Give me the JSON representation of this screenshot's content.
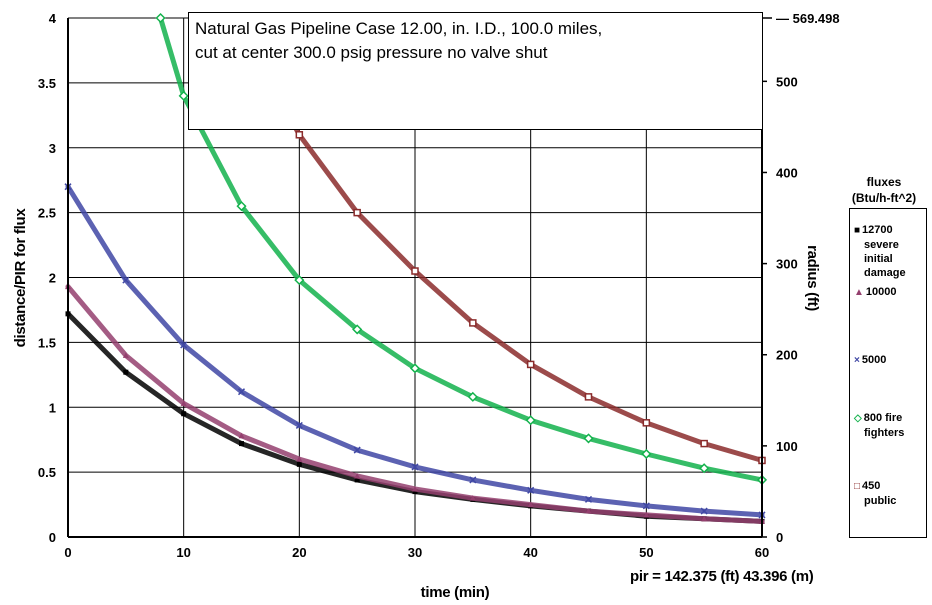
{
  "title_lines": [
    "Natural Gas Pipeline Case 12.00, in. I.D., 100.0 miles,",
    "cut at center 300.0 psig pressure no valve shut"
  ],
  "footer_note": "pir = 142.375 (ft) 43.396 (m)",
  "legend": {
    "heading_lines": [
      "fluxes",
      "(Btu/h-ft^2)"
    ],
    "items": [
      {
        "lines": [
          "12700",
          "severe",
          "initial",
          "damage"
        ],
        "marker": "square",
        "color": "#000000"
      },
      {
        "lines": [
          "10000"
        ],
        "marker": "triangle",
        "color": "#943f6e"
      },
      {
        "lines": [
          "5000"
        ],
        "marker": "cross",
        "color": "#3f47a4"
      },
      {
        "lines": [
          "800 fire",
          "fighters"
        ],
        "marker": "diamond",
        "color": "#13b24c"
      },
      {
        "lines": [
          "450",
          "public"
        ],
        "marker": "square-open",
        "color": "#8b2b2b"
      }
    ]
  },
  "chart_data": {
    "type": "scatter",
    "xlabel": "time (min)",
    "ylabel": "distance/PIR for flux",
    "y2label": "radius (ft)",
    "xlim": [
      0,
      60
    ],
    "ylim": [
      0,
      4
    ],
    "y2lim": [
      0,
      569.498
    ],
    "xticks": [
      0,
      10,
      20,
      30,
      40,
      50,
      60
    ],
    "yticks": [
      0,
      0.5,
      1,
      1.5,
      2,
      2.5,
      3,
      3.5,
      4
    ],
    "y2ticks": [
      0,
      100,
      200,
      300,
      400,
      500
    ],
    "y2max_label": "569.498",
    "grid": true,
    "series": [
      {
        "name": "12700 severe initial damage",
        "color": "#000000",
        "x": [
          0,
          5,
          10,
          15,
          20,
          25,
          30,
          35,
          40,
          45,
          50,
          55,
          60
        ],
        "y": [
          1.72,
          1.27,
          0.95,
          0.72,
          0.56,
          0.44,
          0.35,
          0.29,
          0.24,
          0.2,
          0.16,
          0.14,
          0.12
        ]
      },
      {
        "name": "10000",
        "color": "#943f6e",
        "x": [
          0,
          5,
          10,
          15,
          20,
          25,
          30,
          35,
          40,
          45,
          50,
          55,
          60
        ],
        "y": [
          1.93,
          1.4,
          1.03,
          0.78,
          0.6,
          0.47,
          0.37,
          0.3,
          0.25,
          0.2,
          0.17,
          0.14,
          0.12
        ]
      },
      {
        "name": "5000",
        "color": "#3f47a4",
        "x": [
          0,
          5,
          10,
          15,
          20,
          25,
          30,
          35,
          40,
          45,
          50,
          55,
          60
        ],
        "y": [
          2.7,
          1.98,
          1.48,
          1.12,
          0.86,
          0.67,
          0.54,
          0.44,
          0.36,
          0.29,
          0.24,
          0.2,
          0.17
        ]
      },
      {
        "name": "800 fire fighters",
        "color": "#13b24c",
        "x": [
          8,
          10,
          15,
          20,
          25,
          30,
          35,
          40,
          45,
          50,
          55,
          60
        ],
        "y": [
          4.0,
          3.4,
          2.55,
          1.98,
          1.6,
          1.3,
          1.08,
          0.9,
          0.76,
          0.64,
          0.53,
          0.44
        ]
      },
      {
        "name": "450 public",
        "color": "#8b2b2b",
        "x": [
          17,
          20,
          25,
          30,
          35,
          40,
          45,
          50,
          55,
          60
        ],
        "y": [
          3.6,
          3.1,
          2.5,
          2.05,
          1.65,
          1.33,
          1.08,
          0.88,
          0.72,
          0.59
        ]
      }
    ]
  }
}
